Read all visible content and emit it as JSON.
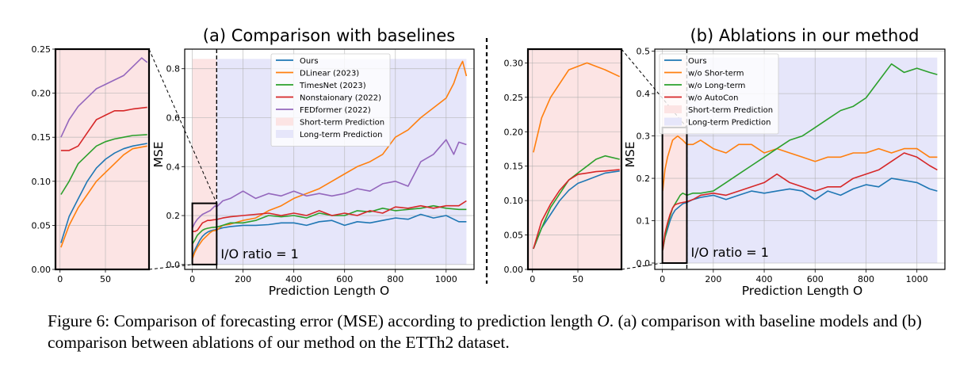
{
  "caption": {
    "prefix": "Figure 6: Comparison of forecasting error (MSE) according to prediction length ",
    "variable": "O",
    "suffix": ". (a) comparison with baseline models and (b) comparison between ablations of our method on the ETTh2 dataset."
  },
  "annotation_io": "I/O ratio = 1",
  "chart_data": [
    {
      "panel": "a",
      "type": "line",
      "title": "(a) Comparison with baselines",
      "xlabel": "Prediction Length O",
      "ylabel": "MSE",
      "xlim": [
        -30,
        1110
      ],
      "ylim": [
        -0.02,
        0.88
      ],
      "xticks": [
        0,
        200,
        400,
        600,
        800,
        1000
      ],
      "yticks": [
        0.0,
        0.2,
        0.4,
        0.6,
        0.8
      ],
      "grid": true,
      "legend_position": "upper-left",
      "short_term_region": [
        0,
        96
      ],
      "long_term_region": [
        96,
        1080
      ],
      "region_labels": [
        "Short-term Prediction",
        "Long-term Prediction"
      ],
      "series": [
        {
          "name": "Ours",
          "color": "#1f77b4",
          "x": [
            1,
            10,
            20,
            30,
            40,
            50,
            60,
            70,
            80,
            96,
            120,
            150,
            200,
            250,
            300,
            350,
            400,
            450,
            500,
            550,
            600,
            650,
            700,
            750,
            800,
            850,
            900,
            950,
            1000,
            1050,
            1080
          ],
          "values": [
            0.03,
            0.06,
            0.08,
            0.1,
            0.115,
            0.125,
            0.132,
            0.137,
            0.14,
            0.143,
            0.15,
            0.155,
            0.16,
            0.16,
            0.163,
            0.17,
            0.17,
            0.16,
            0.175,
            0.18,
            0.16,
            0.175,
            0.17,
            0.18,
            0.19,
            0.185,
            0.205,
            0.19,
            0.2,
            0.175,
            0.175
          ]
        },
        {
          "name": "DLinear (2023)",
          "color": "#ff7f0e",
          "x": [
            1,
            10,
            20,
            30,
            40,
            50,
            60,
            70,
            80,
            96,
            120,
            150,
            200,
            250,
            300,
            350,
            400,
            450,
            500,
            550,
            600,
            650,
            700,
            750,
            800,
            850,
            900,
            950,
            1000,
            1030,
            1050,
            1065,
            1080
          ],
          "values": [
            0.025,
            0.05,
            0.07,
            0.085,
            0.1,
            0.11,
            0.12,
            0.13,
            0.137,
            0.14,
            0.16,
            0.165,
            0.18,
            0.19,
            0.22,
            0.24,
            0.27,
            0.29,
            0.31,
            0.34,
            0.37,
            0.4,
            0.42,
            0.45,
            0.52,
            0.55,
            0.6,
            0.64,
            0.68,
            0.74,
            0.8,
            0.83,
            0.77
          ]
        },
        {
          "name": "TimesNet (2023)",
          "color": "#2ca02c",
          "x": [
            1,
            10,
            20,
            30,
            40,
            50,
            60,
            70,
            80,
            96,
            120,
            150,
            200,
            250,
            300,
            350,
            400,
            450,
            500,
            550,
            600,
            650,
            700,
            750,
            800,
            850,
            900,
            950,
            1000,
            1050,
            1080
          ],
          "values": [
            0.085,
            0.1,
            0.12,
            0.13,
            0.14,
            0.145,
            0.148,
            0.15,
            0.152,
            0.153,
            0.16,
            0.17,
            0.17,
            0.18,
            0.2,
            0.195,
            0.2,
            0.19,
            0.21,
            0.2,
            0.2,
            0.22,
            0.215,
            0.23,
            0.22,
            0.225,
            0.23,
            0.24,
            0.23,
            0.225,
            0.225
          ]
        },
        {
          "name": "Nonstaionary (2022)",
          "color": "#d62728",
          "x": [
            1,
            10,
            20,
            30,
            40,
            50,
            60,
            70,
            80,
            96,
            120,
            150,
            200,
            250,
            300,
            350,
            400,
            450,
            500,
            550,
            600,
            650,
            700,
            750,
            800,
            850,
            900,
            950,
            1000,
            1050,
            1080
          ],
          "values": [
            0.135,
            0.135,
            0.14,
            0.155,
            0.17,
            0.175,
            0.18,
            0.18,
            0.182,
            0.184,
            0.19,
            0.195,
            0.2,
            0.205,
            0.21,
            0.2,
            0.21,
            0.2,
            0.22,
            0.2,
            0.21,
            0.2,
            0.22,
            0.21,
            0.235,
            0.23,
            0.24,
            0.23,
            0.24,
            0.24,
            0.26
          ]
        },
        {
          "name": "FEDformer (2022)",
          "color": "#9467bd",
          "x": [
            1,
            10,
            20,
            30,
            40,
            50,
            60,
            70,
            80,
            90,
            96,
            120,
            150,
            200,
            250,
            300,
            350,
            400,
            450,
            500,
            550,
            600,
            650,
            700,
            750,
            800,
            850,
            900,
            950,
            1000,
            1030,
            1050,
            1080
          ],
          "values": [
            0.15,
            0.17,
            0.185,
            0.195,
            0.205,
            0.21,
            0.215,
            0.22,
            0.23,
            0.24,
            0.235,
            0.26,
            0.27,
            0.3,
            0.27,
            0.29,
            0.28,
            0.3,
            0.28,
            0.29,
            0.28,
            0.29,
            0.31,
            0.3,
            0.33,
            0.34,
            0.32,
            0.42,
            0.45,
            0.51,
            0.45,
            0.5,
            0.49
          ]
        }
      ]
    },
    {
      "panel": "a-inset",
      "type": "line",
      "xlim": [
        -5,
        98
      ],
      "ylim": [
        0.0,
        0.25
      ],
      "xticks": [
        0,
        50
      ],
      "yticks": [
        0.0,
        0.05,
        0.1,
        0.15,
        0.2,
        0.25
      ],
      "grid": true
    },
    {
      "panel": "b",
      "type": "line",
      "title": "(b) Ablations in our method",
      "xlabel": "Prediction Length O",
      "ylabel": "MSE",
      "xlim": [
        -30,
        1110
      ],
      "ylim": [
        -0.015,
        0.505
      ],
      "xticks": [
        0,
        200,
        400,
        600,
        800,
        1000
      ],
      "yticks": [
        0.0,
        0.1,
        0.2,
        0.3,
        0.4,
        0.5
      ],
      "grid": true,
      "legend_position": "upper-left",
      "short_term_region": [
        0,
        96
      ],
      "long_term_region": [
        96,
        1080
      ],
      "region_labels": [
        "Short-term Prediction",
        "Long-term Prediction"
      ],
      "series": [
        {
          "name": "Ours",
          "color": "#1f77b4",
          "x": [
            1,
            10,
            20,
            30,
            40,
            50,
            60,
            70,
            80,
            96,
            120,
            150,
            200,
            250,
            300,
            350,
            400,
            450,
            500,
            550,
            600,
            650,
            700,
            750,
            800,
            850,
            900,
            950,
            1000,
            1050,
            1080
          ],
          "values": [
            0.03,
            0.06,
            0.08,
            0.1,
            0.115,
            0.125,
            0.13,
            0.135,
            0.14,
            0.143,
            0.15,
            0.155,
            0.16,
            0.15,
            0.16,
            0.17,
            0.165,
            0.17,
            0.175,
            0.17,
            0.15,
            0.17,
            0.16,
            0.175,
            0.185,
            0.18,
            0.2,
            0.195,
            0.19,
            0.175,
            0.17
          ]
        },
        {
          "name": "w/o Shor-term",
          "color": "#ff7f0e",
          "x": [
            1,
            10,
            20,
            30,
            40,
            50,
            60,
            70,
            80,
            96,
            120,
            150,
            200,
            250,
            300,
            350,
            400,
            450,
            500,
            550,
            600,
            650,
            700,
            750,
            800,
            850,
            900,
            950,
            1000,
            1050,
            1080
          ],
          "values": [
            0.17,
            0.22,
            0.25,
            0.27,
            0.29,
            0.295,
            0.3,
            0.295,
            0.29,
            0.28,
            0.28,
            0.29,
            0.27,
            0.26,
            0.28,
            0.28,
            0.26,
            0.27,
            0.26,
            0.25,
            0.24,
            0.25,
            0.25,
            0.26,
            0.26,
            0.27,
            0.26,
            0.27,
            0.27,
            0.25,
            0.25
          ]
        },
        {
          "name": "w/o Long-term",
          "color": "#2ca02c",
          "x": [
            1,
            10,
            20,
            30,
            40,
            50,
            60,
            70,
            80,
            96,
            120,
            150,
            200,
            250,
            300,
            350,
            400,
            450,
            500,
            550,
            600,
            650,
            700,
            750,
            800,
            850,
            900,
            950,
            1000,
            1050,
            1080
          ],
          "values": [
            0.03,
            0.06,
            0.09,
            0.11,
            0.13,
            0.14,
            0.15,
            0.16,
            0.165,
            0.16,
            0.165,
            0.165,
            0.17,
            0.19,
            0.21,
            0.23,
            0.25,
            0.27,
            0.29,
            0.3,
            0.32,
            0.34,
            0.36,
            0.37,
            0.39,
            0.43,
            0.47,
            0.45,
            0.46,
            0.45,
            0.445
          ]
        },
        {
          "name": "w/o AutoCon",
          "color": "#d62728",
          "x": [
            1,
            10,
            20,
            30,
            40,
            50,
            60,
            70,
            80,
            96,
            120,
            150,
            200,
            250,
            300,
            350,
            400,
            450,
            500,
            550,
            600,
            650,
            700,
            750,
            800,
            850,
            900,
            950,
            1000,
            1050,
            1080
          ],
          "values": [
            0.03,
            0.07,
            0.095,
            0.115,
            0.13,
            0.138,
            0.14,
            0.142,
            0.143,
            0.145,
            0.15,
            0.16,
            0.165,
            0.16,
            0.17,
            0.18,
            0.19,
            0.21,
            0.19,
            0.18,
            0.17,
            0.18,
            0.18,
            0.2,
            0.21,
            0.22,
            0.24,
            0.26,
            0.25,
            0.23,
            0.22
          ]
        }
      ]
    },
    {
      "panel": "b-inset",
      "type": "line",
      "xlim": [
        -5,
        98
      ],
      "ylim": [
        0.0,
        0.32
      ],
      "xticks": [
        0,
        50
      ],
      "yticks": [
        0.0,
        0.05,
        0.1,
        0.15,
        0.2,
        0.25,
        0.3
      ],
      "grid": true
    }
  ]
}
